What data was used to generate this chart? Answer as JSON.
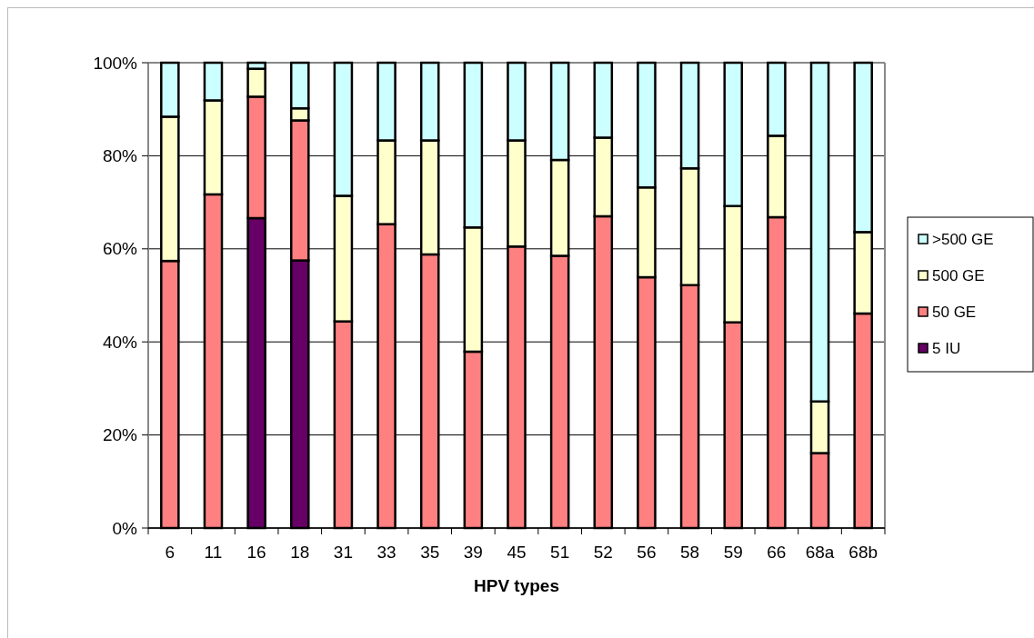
{
  "chart_data": {
    "type": "bar",
    "stacked": true,
    "xlabel": "HPV types",
    "categories": [
      "6",
      "11",
      "16",
      "18",
      "31",
      "33",
      "35",
      "39",
      "45",
      "51",
      "52",
      "56",
      "58",
      "59",
      "66",
      "68a",
      "68b"
    ],
    "series": [
      {
        "name": "5 IU",
        "color": "#660066",
        "values": [
          null,
          null,
          66.6,
          57.5,
          null,
          null,
          null,
          null,
          null,
          null,
          null,
          null,
          null,
          null,
          null,
          null,
          null
        ]
      },
      {
        "name": "50 GE",
        "color": "#ff8080",
        "values": [
          57.4,
          71.7,
          26.1,
          30.1,
          44.4,
          65.3,
          58.8,
          37.9,
          60.5,
          58.5,
          67.0,
          53.9,
          52.2,
          44.2,
          66.8,
          16.1,
          46.1
        ]
      },
      {
        "name": "500 GE",
        "color": "#ffffcc",
        "values": [
          31.0,
          20.2,
          6.0,
          2.6,
          27.0,
          18.0,
          24.5,
          26.7,
          22.8,
          20.6,
          16.9,
          19.3,
          25.1,
          25.0,
          17.5,
          11.1,
          17.5
        ]
      },
      {
        "name": ">500 GE",
        "color": "#ccffff",
        "values": [
          11.6,
          8.1,
          1.3,
          9.8,
          28.6,
          16.7,
          16.7,
          35.4,
          16.7,
          20.9,
          16.1,
          26.8,
          22.7,
          30.8,
          15.7,
          72.8,
          36.4
        ]
      }
    ],
    "ylim": [
      0,
      100
    ],
    "yticks": [
      {
        "value": 0,
        "label": "0%"
      },
      {
        "value": 20,
        "label": "20%"
      },
      {
        "value": 40,
        "label": "40%"
      },
      {
        "value": 60,
        "label": "60%"
      },
      {
        "value": 80,
        "label": "80%"
      },
      {
        "value": 100,
        "label": "100%"
      }
    ],
    "grid": "y",
    "legend": "right"
  }
}
